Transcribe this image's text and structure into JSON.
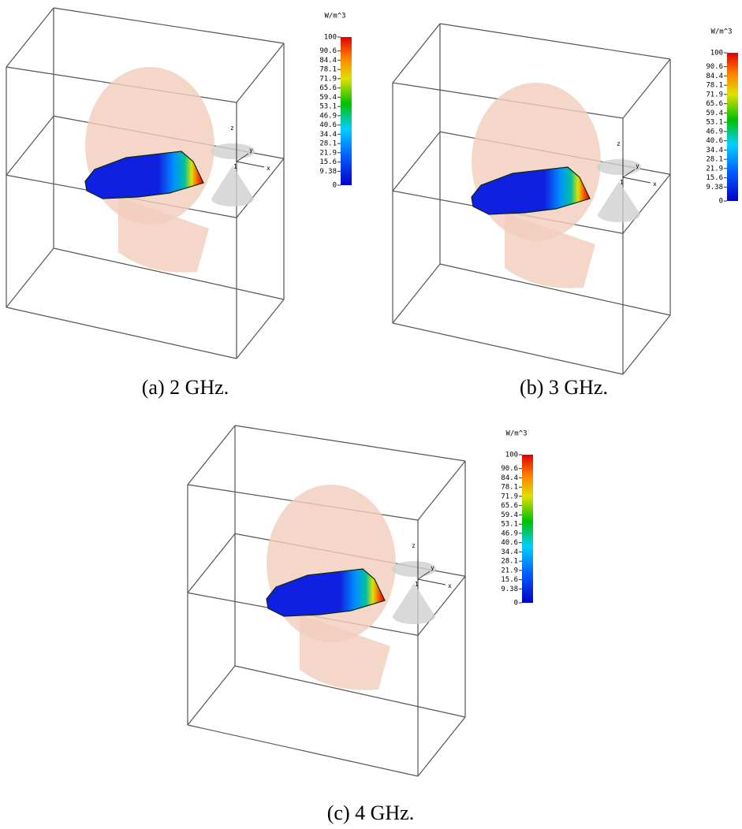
{
  "panels": [
    {
      "caption": "(a) 2 GHz.",
      "colorbar_title": "W/m^3",
      "axis_labels": [
        "z",
        "y",
        "x",
        "1"
      ],
      "colorbar_ticks": [
        100,
        90.6,
        84.4,
        78.1,
        71.9,
        65.6,
        59.4,
        53.1,
        46.9,
        40.6,
        34.4,
        28.1,
        21.9,
        15.6,
        9.38,
        0
      ]
    },
    {
      "caption": "(b) 3 GHz.",
      "colorbar_title": "W/m^3",
      "axis_labels": [
        "z",
        "y",
        "x",
        "1"
      ],
      "colorbar_ticks": [
        100,
        90.6,
        84.4,
        78.1,
        71.9,
        65.6,
        59.4,
        53.1,
        46.9,
        40.6,
        34.4,
        28.1,
        21.9,
        15.6,
        9.38,
        0
      ]
    },
    {
      "caption": "(c) 4 GHz.",
      "colorbar_title": "W/m^3",
      "axis_labels": [
        "z",
        "y",
        "x",
        "1"
      ],
      "colorbar_ticks": [
        100,
        90.6,
        84.4,
        78.1,
        71.9,
        65.6,
        59.4,
        53.1,
        46.9,
        40.6,
        34.4,
        28.1,
        21.9,
        15.6,
        9.38,
        0
      ]
    }
  ]
}
